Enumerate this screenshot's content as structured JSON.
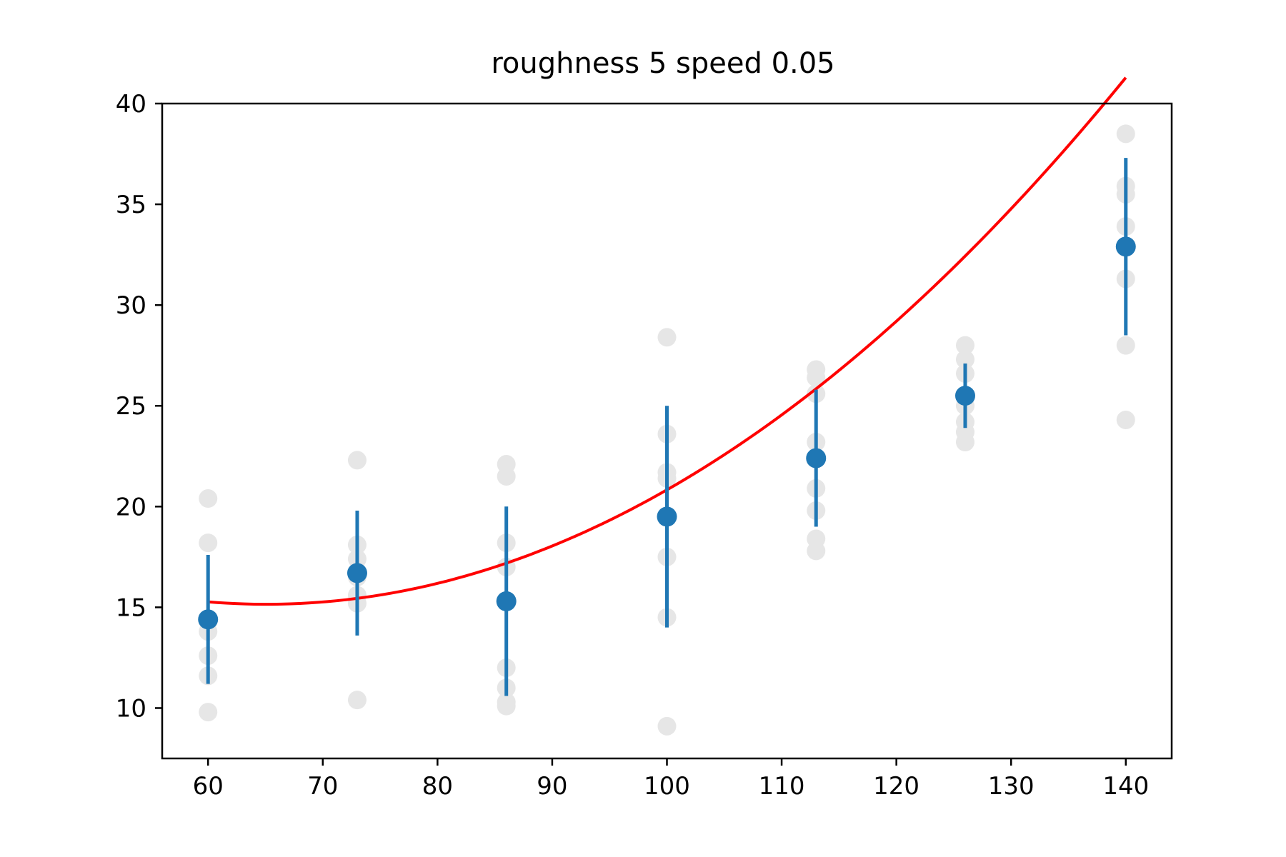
{
  "chart_data": {
    "type": "scatter",
    "title": "roughness 5 speed 0.05",
    "xlabel": "",
    "ylabel": "",
    "xlim": [
      56,
      144
    ],
    "ylim": [
      7.5,
      40
    ],
    "xticks": [
      60,
      70,
      80,
      90,
      100,
      110,
      120,
      130,
      140
    ],
    "yticks": [
      10,
      15,
      20,
      25,
      30,
      35,
      40
    ],
    "grid": false,
    "legend": "none",
    "colors": {
      "raw_points": "#e6e6e6",
      "means": "#1f77b4",
      "fit": "#ff0000"
    },
    "raw_points": [
      {
        "x": 60,
        "y": 20.4
      },
      {
        "x": 60,
        "y": 18.2
      },
      {
        "x": 60,
        "y": 14.3
      },
      {
        "x": 60,
        "y": 13.8
      },
      {
        "x": 60,
        "y": 12.6
      },
      {
        "x": 60,
        "y": 11.6
      },
      {
        "x": 60,
        "y": 9.8
      },
      {
        "x": 73,
        "y": 22.3
      },
      {
        "x": 73,
        "y": 18.1
      },
      {
        "x": 73,
        "y": 17.4
      },
      {
        "x": 73,
        "y": 16.5
      },
      {
        "x": 73,
        "y": 15.6
      },
      {
        "x": 73,
        "y": 15.2
      },
      {
        "x": 73,
        "y": 10.4
      },
      {
        "x": 86,
        "y": 22.1
      },
      {
        "x": 86,
        "y": 21.5
      },
      {
        "x": 86,
        "y": 18.2
      },
      {
        "x": 86,
        "y": 17.0
      },
      {
        "x": 86,
        "y": 12.0
      },
      {
        "x": 86,
        "y": 11.0
      },
      {
        "x": 86,
        "y": 10.3
      },
      {
        "x": 86,
        "y": 10.1
      },
      {
        "x": 100,
        "y": 28.4
      },
      {
        "x": 100,
        "y": 23.6
      },
      {
        "x": 100,
        "y": 21.7
      },
      {
        "x": 100,
        "y": 21.4
      },
      {
        "x": 100,
        "y": 17.5
      },
      {
        "x": 100,
        "y": 14.5
      },
      {
        "x": 100,
        "y": 9.1
      },
      {
        "x": 113,
        "y": 26.8
      },
      {
        "x": 113,
        "y": 26.4
      },
      {
        "x": 113,
        "y": 25.6
      },
      {
        "x": 113,
        "y": 23.2
      },
      {
        "x": 113,
        "y": 20.9
      },
      {
        "x": 113,
        "y": 19.8
      },
      {
        "x": 113,
        "y": 18.4
      },
      {
        "x": 113,
        "y": 17.8
      },
      {
        "x": 126,
        "y": 28.0
      },
      {
        "x": 126,
        "y": 27.3
      },
      {
        "x": 126,
        "y": 26.6
      },
      {
        "x": 126,
        "y": 25.0
      },
      {
        "x": 126,
        "y": 24.2
      },
      {
        "x": 126,
        "y": 23.7
      },
      {
        "x": 126,
        "y": 23.2
      },
      {
        "x": 140,
        "y": 38.5
      },
      {
        "x": 140,
        "y": 35.9
      },
      {
        "x": 140,
        "y": 35.5
      },
      {
        "x": 140,
        "y": 33.9
      },
      {
        "x": 140,
        "y": 31.3
      },
      {
        "x": 140,
        "y": 28.0
      },
      {
        "x": 140,
        "y": 24.3
      }
    ],
    "means": [
      {
        "x": 60,
        "y": 14.4,
        "yerr": 3.2
      },
      {
        "x": 73,
        "y": 16.7,
        "yerr": 3.1
      },
      {
        "x": 86,
        "y": 15.3,
        "yerr": 4.7
      },
      {
        "x": 100,
        "y": 19.5,
        "yerr": 5.5
      },
      {
        "x": 113,
        "y": 22.4,
        "yerr": 3.4
      },
      {
        "x": 126,
        "y": 25.5,
        "yerr": 1.6
      },
      {
        "x": 140,
        "y": 32.9,
        "yerr": 4.4
      }
    ],
    "fit": {
      "type": "quadratic",
      "x_range": [
        60,
        140
      ],
      "coefficients": [
        34.87,
        -0.606,
        0.004656
      ]
    }
  }
}
